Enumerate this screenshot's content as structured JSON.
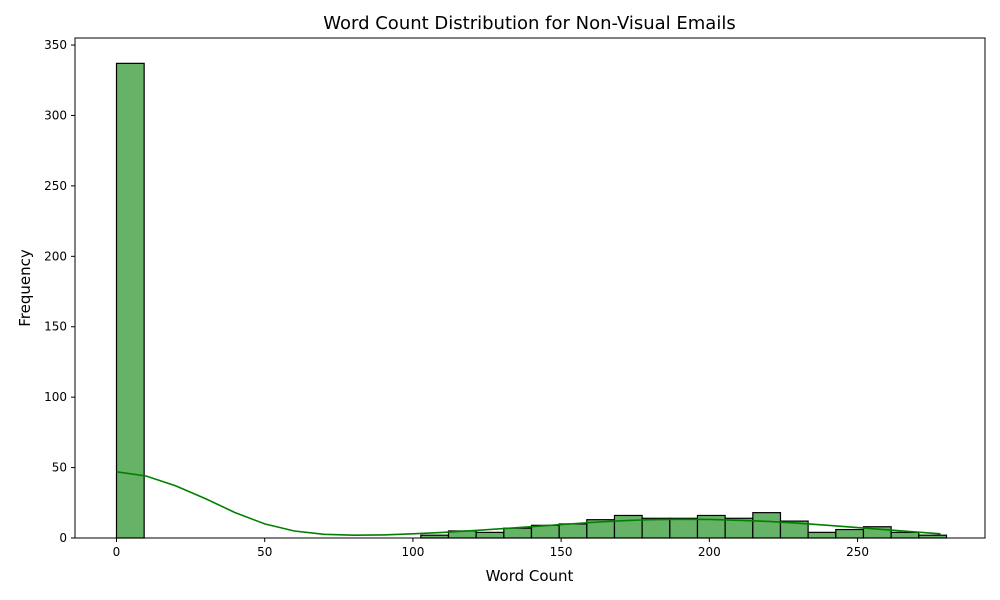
{
  "chart_data": {
    "type": "bar",
    "subtype": "histogram-with-kde",
    "title": "Word Count Distribution for Non-Visual Emails",
    "xlabel": "Word Count",
    "ylabel": "Frequency",
    "xlim": [
      -14,
      293
    ],
    "ylim": [
      0,
      355
    ],
    "xticks": [
      0,
      50,
      100,
      150,
      200,
      250
    ],
    "yticks": [
      0,
      50,
      100,
      150,
      200,
      250,
      300,
      350
    ],
    "grid": false,
    "legend": "none",
    "colors": {
      "bar_fill": "#66b266",
      "bar_edge": "#000000",
      "kde_line": "#008000"
    },
    "bins": [
      {
        "x0": 0,
        "x1": 9.33,
        "count": 337
      },
      {
        "x0": 9.33,
        "x1": 18.67,
        "count": 0
      },
      {
        "x0": 18.67,
        "x1": 28.0,
        "count": 0
      },
      {
        "x0": 28.0,
        "x1": 37.33,
        "count": 0
      },
      {
        "x0": 37.33,
        "x1": 46.67,
        "count": 0
      },
      {
        "x0": 46.67,
        "x1": 56.0,
        "count": 0
      },
      {
        "x0": 56.0,
        "x1": 65.33,
        "count": 0
      },
      {
        "x0": 65.33,
        "x1": 74.67,
        "count": 0
      },
      {
        "x0": 74.67,
        "x1": 84.0,
        "count": 0
      },
      {
        "x0": 84.0,
        "x1": 93.33,
        "count": 0
      },
      {
        "x0": 93.33,
        "x1": 102.67,
        "count": 0
      },
      {
        "x0": 102.67,
        "x1": 112.0,
        "count": 2
      },
      {
        "x0": 112.0,
        "x1": 121.33,
        "count": 5
      },
      {
        "x0": 121.33,
        "x1": 130.67,
        "count": 4
      },
      {
        "x0": 130.67,
        "x1": 140.0,
        "count": 7
      },
      {
        "x0": 140.0,
        "x1": 149.33,
        "count": 9
      },
      {
        "x0": 149.33,
        "x1": 158.67,
        "count": 10
      },
      {
        "x0": 158.67,
        "x1": 168.0,
        "count": 13
      },
      {
        "x0": 168.0,
        "x1": 177.33,
        "count": 16
      },
      {
        "x0": 177.33,
        "x1": 186.67,
        "count": 14
      },
      {
        "x0": 186.67,
        "x1": 196.0,
        "count": 14
      },
      {
        "x0": 196.0,
        "x1": 205.33,
        "count": 16
      },
      {
        "x0": 205.33,
        "x1": 214.67,
        "count": 14
      },
      {
        "x0": 214.67,
        "x1": 224.0,
        "count": 18
      },
      {
        "x0": 224.0,
        "x1": 233.33,
        "count": 12
      },
      {
        "x0": 233.33,
        "x1": 242.67,
        "count": 4
      },
      {
        "x0": 242.67,
        "x1": 252.0,
        "count": 6
      },
      {
        "x0": 252.0,
        "x1": 261.33,
        "count": 8
      },
      {
        "x0": 261.33,
        "x1": 270.67,
        "count": 4
      },
      {
        "x0": 270.67,
        "x1": 280.0,
        "count": 2
      }
    ],
    "kde": {
      "x": [
        0,
        10,
        20,
        30,
        40,
        50,
        60,
        70,
        80,
        90,
        100,
        110,
        120,
        130,
        140,
        150,
        160,
        170,
        180,
        190,
        200,
        210,
        220,
        230,
        240,
        250,
        260,
        270,
        278
      ],
      "y": [
        47,
        44,
        37,
        28,
        18,
        10,
        5,
        2.6,
        2,
        2.2,
        3,
        4,
        5.2,
        6.6,
        8,
        9.5,
        11,
        12.2,
        13,
        13.3,
        13.2,
        12.6,
        11.8,
        10.5,
        9,
        7.4,
        5.8,
        4.2,
        3
      ]
    }
  }
}
